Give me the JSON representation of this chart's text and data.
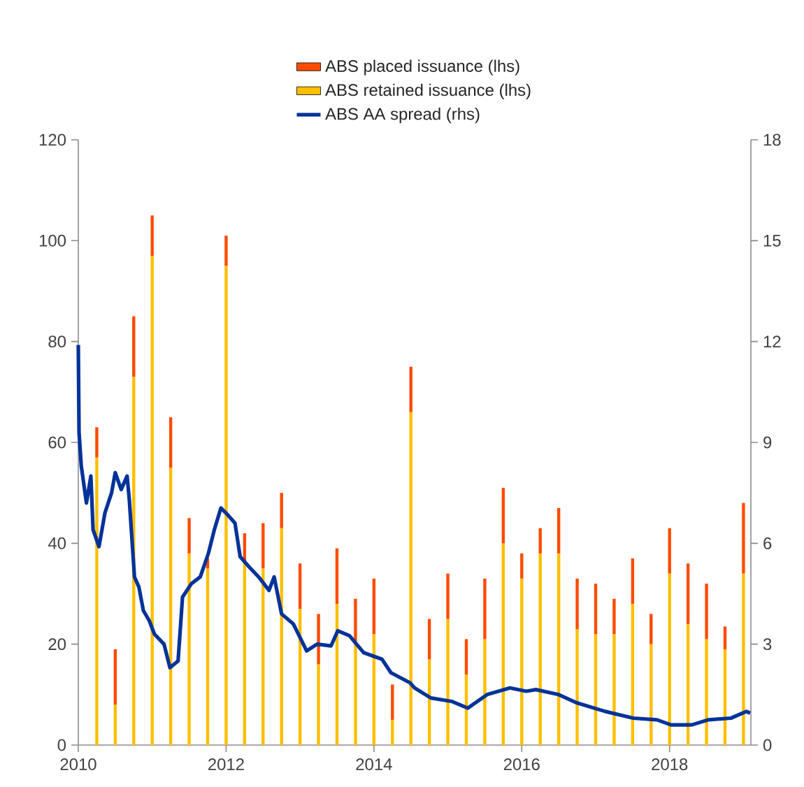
{
  "chart_data": {
    "type": "bar",
    "stacked": true,
    "x": [
      2010.25,
      2010.5,
      2010.75,
      2011.0,
      2011.25,
      2011.5,
      2011.75,
      2012.0,
      2012.25,
      2012.5,
      2012.75,
      2013.0,
      2013.25,
      2013.5,
      2013.75,
      2014.0,
      2014.25,
      2014.5,
      2014.75,
      2015.0,
      2015.25,
      2015.5,
      2015.75,
      2016.0,
      2016.25,
      2016.5,
      2016.75,
      2017.0,
      2017.25,
      2017.5,
      2017.75,
      2018.0,
      2018.25,
      2018.5,
      2018.75,
      2019.0
    ],
    "series": [
      {
        "name": "ABS retained issuance (lhs)",
        "color": "#ffbf00",
        "values": [
          57,
          8,
          73,
          97,
          55,
          38,
          35,
          95,
          36,
          35,
          43,
          27,
          16,
          28,
          20,
          22,
          5,
          66,
          17,
          25,
          14,
          21,
          40,
          33,
          38,
          38,
          23,
          22,
          22,
          28,
          20,
          34,
          24,
          21,
          19,
          34
        ]
      },
      {
        "name": "ABS placed issuance (lhs)",
        "color": "#ff4b00",
        "values": [
          6,
          11,
          12,
          8,
          10,
          7,
          2,
          6,
          6,
          9,
          7,
          9,
          10,
          11,
          9,
          11,
          7,
          9,
          8,
          9,
          7,
          12,
          11,
          5,
          5,
          9,
          10,
          10,
          7,
          9,
          6,
          9,
          12,
          11,
          4.5,
          14
        ]
      },
      {
        "name": "ABS AA spread (rhs)",
        "type": "line",
        "axis": "y2",
        "color": "#003299",
        "x": [
          2010.0,
          2010.01,
          2010.04,
          2010.11,
          2010.17,
          2010.2,
          2010.28,
          2010.36,
          2010.45,
          2010.5,
          2010.58,
          2010.66,
          2010.69,
          2010.76,
          2010.82,
          2010.88,
          2010.96,
          2011.03,
          2011.16,
          2011.24,
          2011.35,
          2011.41,
          2011.53,
          2011.65,
          2011.76,
          2011.84,
          2011.93,
          2012.02,
          2012.12,
          2012.19,
          2012.31,
          2012.44,
          2012.58,
          2012.65,
          2012.75,
          2012.91,
          2013.09,
          2013.23,
          2013.42,
          2013.51,
          2013.67,
          2013.86,
          2014.11,
          2014.23,
          2014.49,
          2014.55,
          2014.77,
          2015.05,
          2015.27,
          2015.53,
          2015.84,
          2016.06,
          2016.19,
          2016.5,
          2016.75,
          2017.13,
          2017.51,
          2017.83,
          2018.02,
          2018.3,
          2018.52,
          2018.83,
          2019.04,
          2019.09
        ],
        "values": [
          11.9,
          9.3,
          8.3,
          7.2,
          8.0,
          6.4,
          5.9,
          6.9,
          7.5,
          8.1,
          7.6,
          8.0,
          7.3,
          5.0,
          4.7,
          4.0,
          3.7,
          3.3,
          3.0,
          2.3,
          2.5,
          4.4,
          4.8,
          5.0,
          5.7,
          6.4,
          7.05,
          6.85,
          6.6,
          5.6,
          5.3,
          5.0,
          4.6,
          5.0,
          3.9,
          3.6,
          2.8,
          3.0,
          2.95,
          3.4,
          3.25,
          2.75,
          2.55,
          2.15,
          1.85,
          1.7,
          1.4,
          1.3,
          1.1,
          1.5,
          1.7,
          1.6,
          1.65,
          1.5,
          1.25,
          1.0,
          0.8,
          0.75,
          0.6,
          0.6,
          0.75,
          0.8,
          1.0,
          0.95
        ]
      }
    ],
    "xlim": [
      2010,
      2019.1
    ],
    "xticks": [
      2010,
      2012,
      2014,
      2016,
      2018
    ],
    "ylim": [
      0,
      120
    ],
    "yticks": [
      0,
      20,
      40,
      60,
      80,
      100,
      120
    ],
    "y2lim": [
      0,
      18
    ],
    "y2ticks": [
      0,
      3,
      6,
      9,
      12,
      15,
      18
    ],
    "legend": "top"
  }
}
